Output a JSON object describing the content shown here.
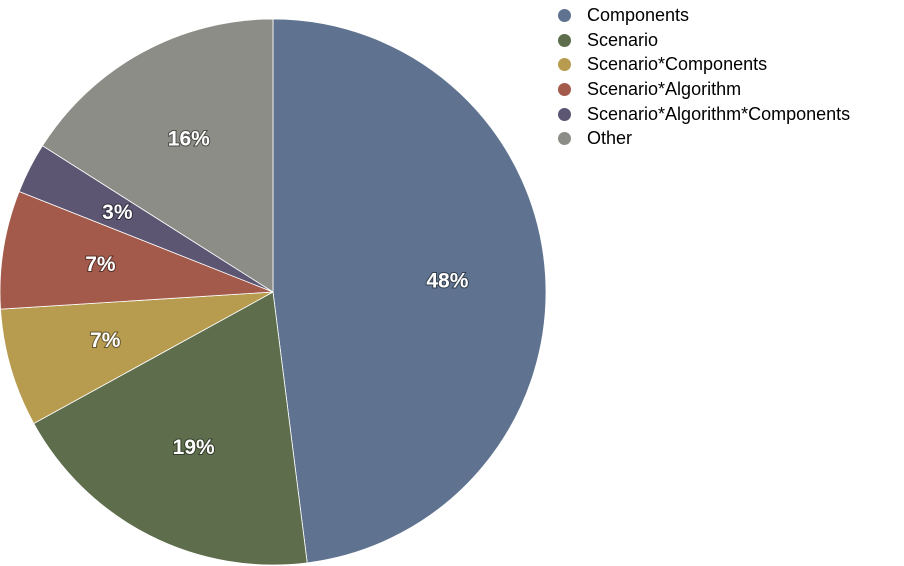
{
  "chart_data": {
    "type": "pie",
    "title": "",
    "slices": [
      {
        "label": "Components",
        "value": 48,
        "value_label": "48%",
        "color": "#5f7390"
      },
      {
        "label": "Scenario",
        "value": 19,
        "value_label": "19%",
        "color": "#5e6e4c"
      },
      {
        "label": "Scenario*Components",
        "value": 7,
        "value_label": "7%",
        "color": "#b79c50"
      },
      {
        "label": "Scenario*Algorithm",
        "value": 7,
        "value_label": "7%",
        "color": "#a35a4b"
      },
      {
        "label": "Scenario*Algorithm*Components",
        "value": 3,
        "value_label": "3%",
        "color": "#5c5673"
      },
      {
        "label": "Other",
        "value": 16,
        "value_label": "16%",
        "color": "#8d8d87"
      }
    ],
    "legend": {
      "position": "top-right"
    },
    "start_angle": "12 o'clock",
    "direction": "clockwise"
  }
}
